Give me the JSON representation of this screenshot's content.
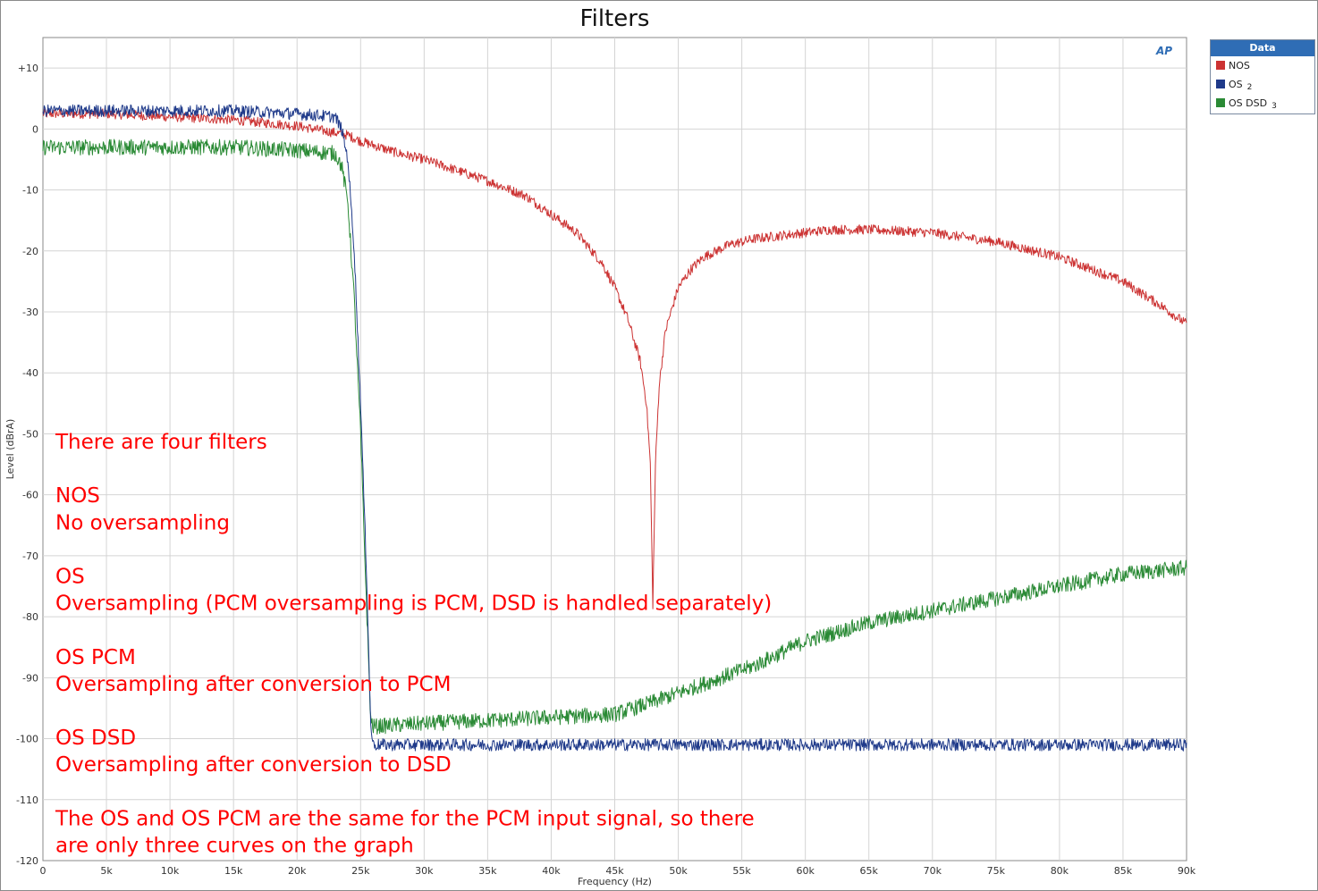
{
  "chart_data": {
    "type": "line",
    "title": "Filters",
    "xlabel": "Frequency (Hz)",
    "ylabel": "Level (dBrA)",
    "xlim": [
      0,
      90000
    ],
    "ylim": [
      -120,
      15
    ],
    "xticks": [
      0,
      5000,
      10000,
      15000,
      20000,
      25000,
      30000,
      35000,
      40000,
      45000,
      50000,
      55000,
      60000,
      65000,
      70000,
      75000,
      80000,
      85000,
      90000
    ],
    "xtick_labels": [
      "0",
      "5k",
      "10k",
      "15k",
      "20k",
      "25k",
      "30k",
      "35k",
      "40k",
      "45k",
      "50k",
      "55k",
      "60k",
      "65k",
      "70k",
      "75k",
      "80k",
      "85k",
      "90k"
    ],
    "yticks": [
      10,
      0,
      -10,
      -20,
      -30,
      -40,
      -50,
      -60,
      -70,
      -80,
      -90,
      -100,
      -110,
      -120
    ],
    "ytick_labels": [
      "+10",
      "0",
      "-10",
      "-20",
      "-30",
      "-40",
      "-50",
      "-60",
      "-70",
      "-80",
      "-90",
      "-100",
      "-110",
      "-120"
    ],
    "grid": true,
    "legend_placement": "outside-top-right",
    "legend_title": "Data",
    "series": [
      {
        "name": "NOS",
        "index": "",
        "color": "#cc3333",
        "noise_db": 0.8,
        "x": [
          0,
          5000,
          10000,
          15000,
          20000,
          24000,
          25000,
          28000,
          30000,
          35000,
          38000,
          40000,
          42000,
          44000,
          45000,
          46000,
          47000,
          47500,
          47800,
          48000,
          48200,
          48500,
          49000,
          50000,
          51000,
          52000,
          54000,
          56000,
          60000,
          62000,
          65000,
          70000,
          75000,
          80000,
          85000,
          88000,
          90000
        ],
        "y": [
          2.5,
          2.5,
          2.0,
          1.5,
          0.5,
          -1,
          -2,
          -4,
          -5,
          -8.5,
          -11,
          -14,
          -17,
          -22,
          -26,
          -31,
          -38,
          -45,
          -55,
          -78,
          -55,
          -42,
          -33,
          -26,
          -23,
          -21,
          -19,
          -18,
          -17,
          -16.5,
          -16.5,
          -17,
          -18.5,
          -21,
          -25,
          -29,
          -32
        ]
      },
      {
        "name": "OS",
        "index": "2",
        "color": "#1f3a8a",
        "noise_db": 1.0,
        "x": [
          0,
          5000,
          10000,
          15000,
          20000,
          23000,
          23500,
          24000,
          24500,
          25000,
          25500,
          25800,
          26000,
          30000,
          40000,
          50000,
          60000,
          70000,
          80000,
          90000
        ],
        "y": [
          3,
          3,
          3,
          3,
          2.5,
          2,
          0,
          -5,
          -20,
          -45,
          -75,
          -98,
          -101,
          -101,
          -101,
          -101,
          -101,
          -101,
          -101,
          -101
        ]
      },
      {
        "name": "OS DSD",
        "index": "3",
        "color": "#2a8a35",
        "noise_db": 1.3,
        "x": [
          0,
          5000,
          10000,
          15000,
          20000,
          23000,
          23500,
          24000,
          24500,
          25000,
          25500,
          25800,
          26000,
          30000,
          40000,
          45000,
          48000,
          52000,
          56000,
          60000,
          65000,
          70000,
          75000,
          80000,
          85000,
          90000
        ],
        "y": [
          -3,
          -3,
          -3,
          -3,
          -3.5,
          -4,
          -6,
          -12,
          -28,
          -50,
          -80,
          -97,
          -98,
          -97.5,
          -96.5,
          -96,
          -94,
          -91,
          -88,
          -84,
          -81,
          -79,
          -77,
          -75,
          -73,
          -72
        ]
      }
    ],
    "annotations": [
      "There are four filters",
      "",
      "NOS",
      "No oversampling",
      "",
      "OS",
      "Oversampling (PCM oversampling is PCM, DSD is handled separately)",
      "",
      "OS PCM",
      "Oversampling after conversion to PCM",
      "",
      "OS DSD",
      "Oversampling after conversion to DSD",
      "",
      "The OS and OS PCM are the same for the PCM input signal, so there",
      "are only three curves on the graph"
    ],
    "logo_text": "AP"
  }
}
